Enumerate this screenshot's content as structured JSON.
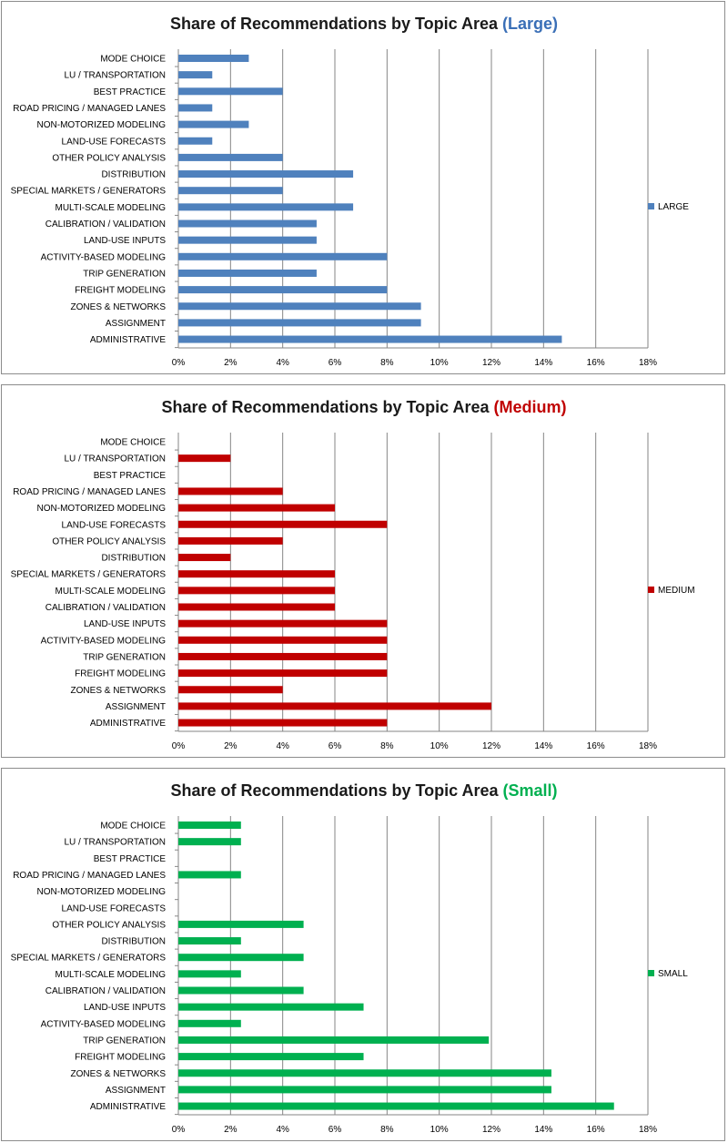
{
  "categories": [
    "MODE CHOICE",
    "LU / TRANSPORTATION",
    "BEST PRACTICE",
    "ROAD PRICING  / MANAGED  LANES",
    "NON-MOTORIZED  MODELING",
    "LAND-USE FORECASTS",
    "OTHER POLICY ANALYSIS",
    "DISTRIBUTION",
    "SPECIAL MARKETS / GENERATORS",
    "MULTI-SCALE MODELING",
    "CALIBRATION / VALIDATION",
    "LAND-USE INPUTS",
    "ACTIVITY-BASED  MODELING",
    "TRIP GENERATION",
    "FREIGHT MODELING",
    "ZONES & NETWORKS",
    "ASSIGNMENT",
    "ADMINISTRATIVE"
  ],
  "chart_data": [
    {
      "type": "bar",
      "orientation": "horizontal",
      "title": "Share of Recommendations by Topic Area",
      "title_suffix": "(Large)",
      "suffix_color": "#3a6fb7",
      "bar_color": "#4f81bd",
      "legend": "LARGE",
      "legend_position": "right",
      "xlim": [
        0,
        18
      ],
      "x_ticks": [
        "0%",
        "2%",
        "4%",
        "6%",
        "8%",
        "10%",
        "12%",
        "14%",
        "16%",
        "18%"
      ],
      "gridlines": "vertical",
      "unit": "%",
      "values": [
        2.7,
        1.3,
        4.0,
        1.3,
        2.7,
        1.3,
        4.0,
        6.7,
        4.0,
        6.7,
        5.3,
        5.3,
        8.0,
        5.3,
        8.0,
        9.3,
        9.3,
        14.7
      ]
    },
    {
      "type": "bar",
      "orientation": "horizontal",
      "title": "Share of Recommendations by Topic Area",
      "title_suffix": "(Medium)",
      "suffix_color": "#c00000",
      "bar_color": "#c00000",
      "legend": "MEDIUM",
      "legend_position": "right",
      "xlim": [
        0,
        18
      ],
      "x_ticks": [
        "0%",
        "2%",
        "4%",
        "6%",
        "8%",
        "10%",
        "12%",
        "14%",
        "16%",
        "18%"
      ],
      "gridlines": "vertical",
      "unit": "%",
      "values": [
        0,
        2.0,
        0,
        4.0,
        6.0,
        8.0,
        4.0,
        2.0,
        6.0,
        6.0,
        6.0,
        8.0,
        8.0,
        8.0,
        8.0,
        4.0,
        12.0,
        8.0
      ]
    },
    {
      "type": "bar",
      "orientation": "horizontal",
      "title": "Share of Recommendations by Topic Area",
      "title_suffix": "(Small)",
      "suffix_color": "#00b050",
      "bar_color": "#00b050",
      "legend": "SMALL",
      "legend_position": "right",
      "xlim": [
        0,
        18
      ],
      "x_ticks": [
        "0%",
        "2%",
        "4%",
        "6%",
        "8%",
        "10%",
        "12%",
        "14%",
        "16%",
        "18%"
      ],
      "gridlines": "vertical",
      "unit": "%",
      "values": [
        2.4,
        2.4,
        0,
        2.4,
        0,
        0,
        4.8,
        2.4,
        4.8,
        2.4,
        4.8,
        7.1,
        2.4,
        11.9,
        7.1,
        14.3,
        14.3,
        16.7
      ]
    }
  ]
}
